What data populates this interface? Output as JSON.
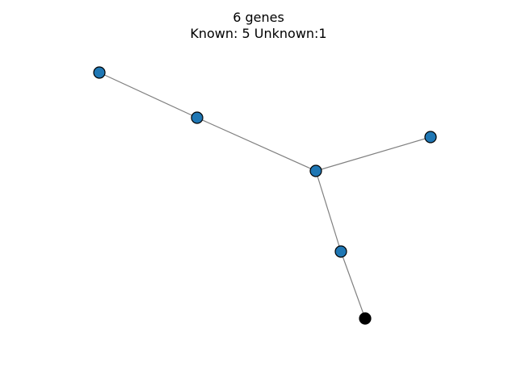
{
  "figure": {
    "title_line1": "6 genes",
    "title_line2": "Known: 5 Unknown:1"
  },
  "graph": {
    "node_color_known": "#1f77b4",
    "node_color_unknown": "#000000",
    "node_edge_color": "#000000",
    "edge_color": "#808080",
    "nodes": [
      {
        "id": "n1",
        "status": "known"
      },
      {
        "id": "n2",
        "status": "known"
      },
      {
        "id": "n3",
        "status": "known"
      },
      {
        "id": "n4",
        "status": "known"
      },
      {
        "id": "n5",
        "status": "known"
      },
      {
        "id": "n6",
        "status": "unknown"
      }
    ],
    "edges": [
      {
        "source": "n1",
        "target": "n2"
      },
      {
        "source": "n2",
        "target": "n3"
      },
      {
        "source": "n3",
        "target": "n4"
      },
      {
        "source": "n3",
        "target": "n5"
      },
      {
        "source": "n5",
        "target": "n6"
      }
    ]
  }
}
